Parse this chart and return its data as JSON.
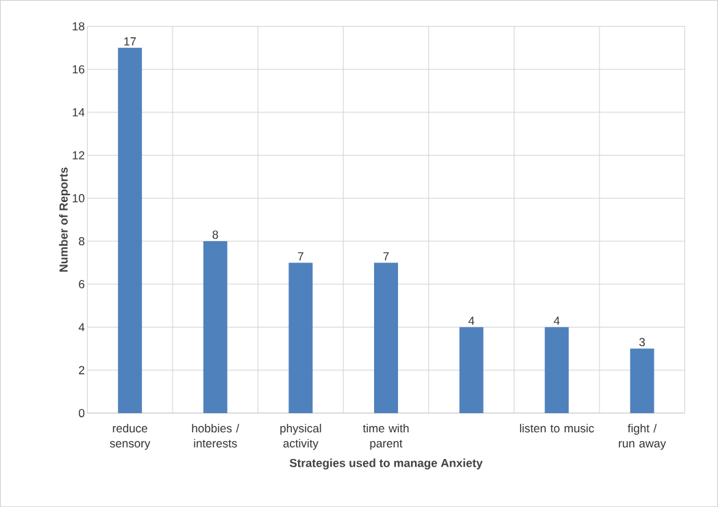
{
  "chart_data": {
    "type": "bar",
    "xlabel": "Strategies used to manage Anxiety",
    "ylabel": "Number of Reports",
    "categories": [
      "reduce sensory",
      "hobbies / interests",
      "physical activity",
      "time with parent",
      null,
      "listen to music",
      "fight / run away"
    ],
    "values": [
      17,
      8,
      7,
      7,
      4,
      4,
      3
    ],
    "color": "#4f81bd",
    "ylim": [
      0,
      18
    ],
    "yticks": [
      0,
      2,
      4,
      6,
      8,
      10,
      12,
      14,
      16,
      18
    ],
    "grid": true,
    "data_labels": true
  }
}
